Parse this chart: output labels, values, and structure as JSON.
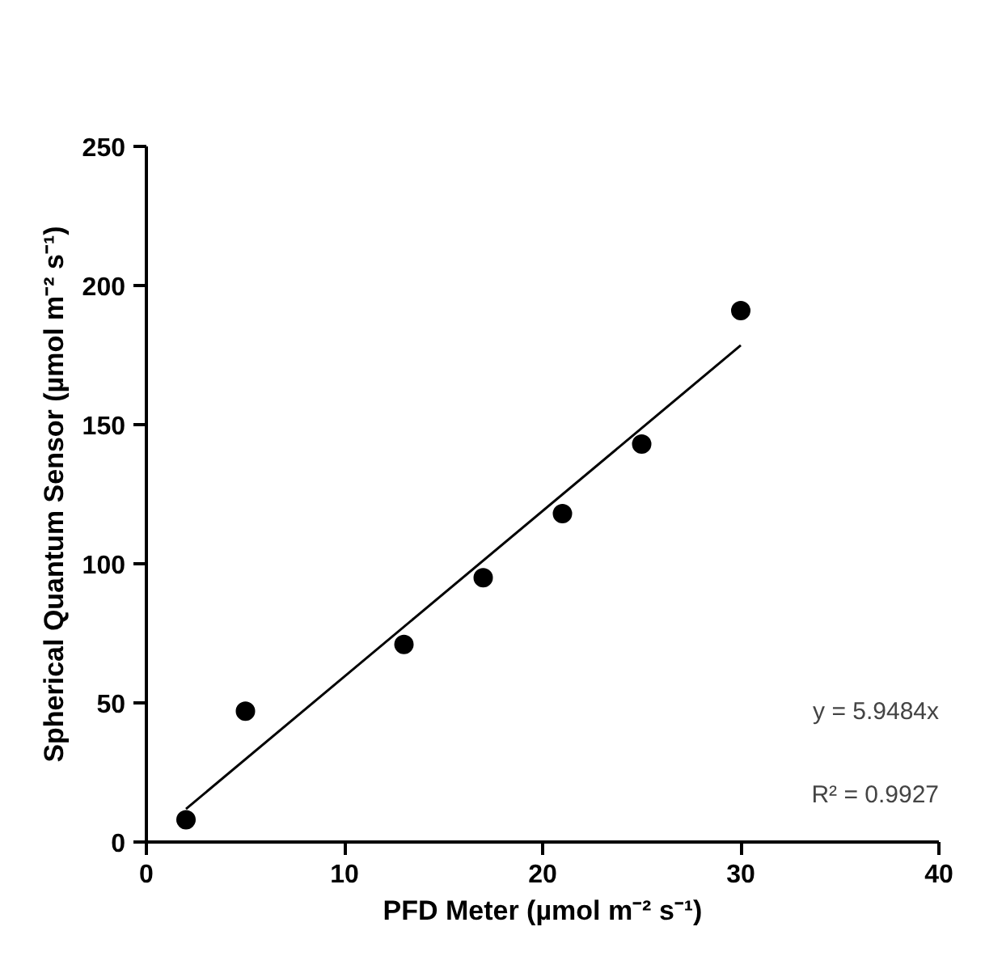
{
  "chart_data": {
    "type": "scatter",
    "xlabel": "PFD Meter (µmol m⁻² s⁻¹)",
    "ylabel": "Spherical Quantum Sensor (µmol m⁻² s⁻¹)",
    "xlim": [
      0,
      40
    ],
    "xticks": [
      0,
      10,
      20,
      30,
      40
    ],
    "ylim": [
      0,
      250
    ],
    "yticks": [
      0,
      50,
      100,
      150,
      200,
      250
    ],
    "grid": false,
    "annotations": [
      "y = 5.9484x",
      "R² = 0.9927"
    ],
    "series": [
      {
        "marker": "circle",
        "color": "#000000",
        "x": [
          2,
          5,
          13,
          17,
          21,
          25,
          30
        ],
        "values": [
          8,
          47,
          71,
          95,
          118,
          143,
          191
        ]
      },
      {
        "type": "line",
        "color": "#000000",
        "x": [
          2,
          30
        ],
        "values": [
          11.9,
          178.5
        ]
      }
    ]
  }
}
